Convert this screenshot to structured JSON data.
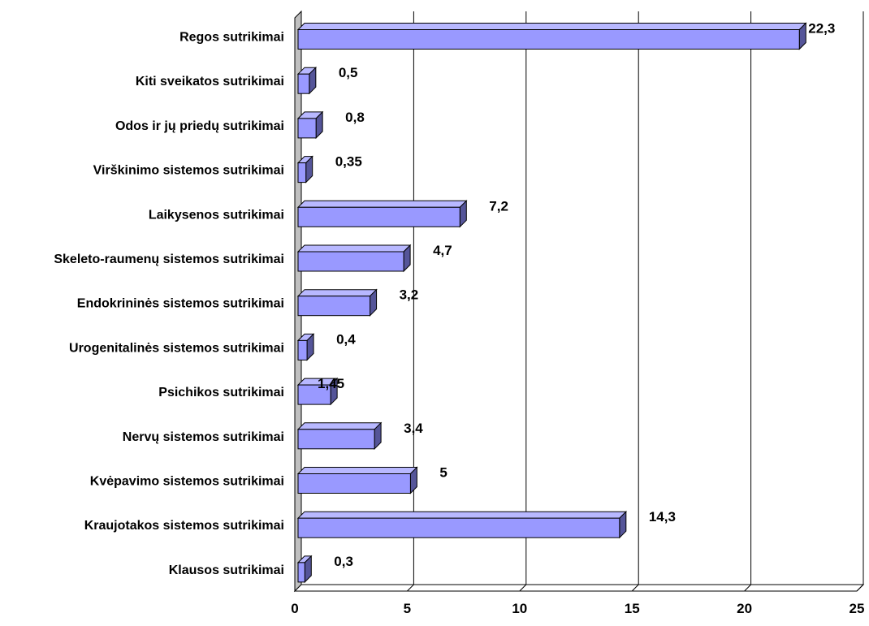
{
  "chart_data": {
    "type": "bar",
    "orientation": "horizontal",
    "style": "3d",
    "title": "",
    "xlabel": "",
    "ylabel": "",
    "xlim": [
      0,
      25
    ],
    "xticks": [
      0,
      5,
      10,
      15,
      20,
      25
    ],
    "grid": "vertical",
    "legend": "none",
    "categories": [
      "Regos sutrikimai",
      "Kiti sveikatos sutrikimai",
      "Odos ir jų priedų sutrikimai",
      "Virškinimo sistemos sutrikimai",
      "Laikysenos sutrikimai",
      "Skeleto-raumenų sistemos sutrikimai",
      "Endokrininės sistemos sutrikimai",
      "Urogenitalinės sistemos sutrikimai",
      "Psichikos sutrikimai",
      "Nervų sistemos sutrikimai",
      "Kvėpavimo sistemos sutrikimai",
      "Kraujotakos sistemos sutrikimai",
      "Klausos sutrikimai"
    ],
    "values": [
      22.3,
      0.5,
      0.8,
      0.35,
      7.2,
      4.7,
      3.2,
      0.4,
      1.45,
      3.4,
      5,
      14.3,
      0.3
    ],
    "data_labels": [
      "22,3",
      "0,5",
      "0,8",
      "0,35",
      "7,2",
      "4,7",
      "3,2",
      "0,4",
      "1,45",
      "3,4",
      "5",
      "14,3",
      "0,3"
    ],
    "colors": {
      "bar_front": "#9999ff",
      "bar_top": "#b8b8ff",
      "bar_side": "#555599",
      "bar_outline": "#000000",
      "gridline": "#000000",
      "wall": "#c0c0c0"
    }
  }
}
